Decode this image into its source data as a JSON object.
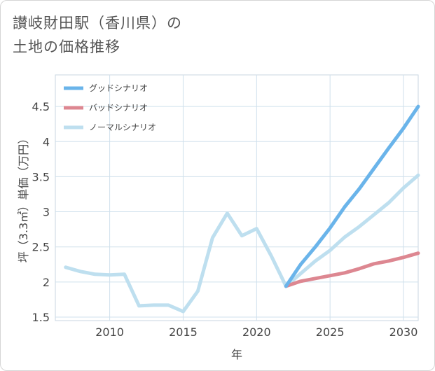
{
  "title_lines": [
    "讃岐財田駅（香川県）の",
    "土地の価格推移"
  ],
  "chart_data": {
    "type": "line",
    "title": "讃岐財田駅（香川県）の土地の価格推移",
    "xlabel": "年",
    "ylabel": "坪（3.3㎡）単価（万円）",
    "xlim": [
      2006.3,
      2031
    ],
    "ylim": [
      1.45,
      4.95
    ],
    "xticks": [
      2010,
      2015,
      2020,
      2025,
      2030
    ],
    "yticks": [
      1.5,
      2,
      2.5,
      3,
      3.5,
      4,
      4.5
    ],
    "grid": true,
    "legend_position": "top-left",
    "series": [
      {
        "name": "グッドシナリオ",
        "color": "#6ab4ea",
        "x": [
          2022,
          2023,
          2024,
          2025,
          2026,
          2027,
          2028,
          2029,
          2030,
          2031
        ],
        "values": [
          1.94,
          2.25,
          2.5,
          2.77,
          3.07,
          3.33,
          3.62,
          3.91,
          4.19,
          4.5
        ]
      },
      {
        "name": "バッドシナリオ",
        "color": "#dd8791",
        "x": [
          2022,
          2023,
          2024,
          2025,
          2026,
          2027,
          2028,
          2029,
          2030,
          2031
        ],
        "values": [
          1.94,
          2.01,
          2.05,
          2.09,
          2.13,
          2.19,
          2.26,
          2.3,
          2.35,
          2.41
        ]
      },
      {
        "name": "ノーマルシナリオ",
        "color": "#bedfef",
        "x": [
          2007,
          2008,
          2009,
          2010,
          2011,
          2012,
          2013,
          2014,
          2015,
          2016,
          2017,
          2018,
          2019,
          2020,
          2021,
          2022,
          2023,
          2024,
          2025,
          2026,
          2027,
          2028,
          2029,
          2030,
          2031
        ],
        "values": [
          2.21,
          2.15,
          2.11,
          2.1,
          2.11,
          1.66,
          1.67,
          1.67,
          1.58,
          1.87,
          2.63,
          2.98,
          2.66,
          2.76,
          2.37,
          1.94,
          2.12,
          2.3,
          2.45,
          2.64,
          2.79,
          2.96,
          3.13,
          3.34,
          3.52
        ]
      }
    ]
  }
}
